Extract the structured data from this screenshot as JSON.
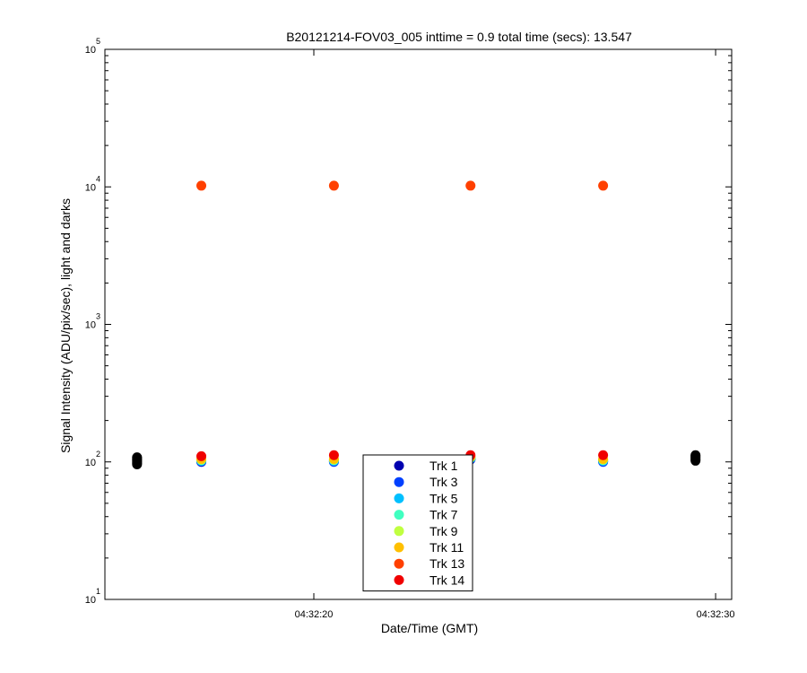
{
  "chart_data": {
    "type": "scatter",
    "title": "B20121214-FOV03_005 inttime = 0.9 total time (secs): 13.547",
    "xlabel": "Date/Time (GMT)",
    "ylabel": "Signal Intensity (ADU/pix/sec), light and darks",
    "x_tick_labels": [
      "04:32:20",
      "04:32:30"
    ],
    "x_unit": "seconds after 04:32:00 GMT",
    "x_ticks": [
      20.0,
      30.0
    ],
    "xlim": [
      14.8,
      30.4
    ],
    "yscale": "log",
    "ylim": [
      10,
      100000
    ],
    "y_ticks": [
      {
        "base": "10",
        "exp": "1",
        "value": 10
      },
      {
        "base": "10",
        "exp": "2",
        "value": 100
      },
      {
        "base": "10",
        "exp": "3",
        "value": 1000
      },
      {
        "base": "10",
        "exp": "4",
        "value": 10000
      },
      {
        "base": "10",
        "exp": "5",
        "value": 100000
      }
    ],
    "legend_position": "bottom-center",
    "series": [
      {
        "name": "Trk 1",
        "color": "#0000b0",
        "points": [
          [
            17.2,
            100
          ],
          [
            20.5,
            101
          ],
          [
            23.9,
            104
          ],
          [
            27.2,
            101
          ]
        ]
      },
      {
        "name": "Trk 3",
        "color": "#0040ff",
        "points": [
          [
            17.2,
            101
          ],
          [
            20.5,
            100
          ],
          [
            23.9,
            105
          ],
          [
            27.2,
            100
          ]
        ]
      },
      {
        "name": "Trk 5",
        "color": "#00c0ff",
        "points": [
          [
            17.2,
            102
          ],
          [
            20.5,
            102
          ],
          [
            23.9,
            106
          ],
          [
            27.2,
            102
          ]
        ]
      },
      {
        "name": "Trk 7",
        "color": "#40ffc0",
        "points": [
          [
            17.2,
            103
          ],
          [
            20.5,
            103
          ],
          [
            23.9,
            107
          ],
          [
            27.2,
            103
          ]
        ]
      },
      {
        "name": "Trk 9",
        "color": "#c0ff40",
        "points": [
          [
            17.2,
            104
          ],
          [
            20.5,
            104
          ],
          [
            23.9,
            108
          ],
          [
            27.2,
            104
          ]
        ]
      },
      {
        "name": "Trk 11",
        "color": "#ffc000",
        "points": [
          [
            17.2,
            105
          ],
          [
            20.5,
            105
          ],
          [
            23.9,
            109
          ],
          [
            27.2,
            105
          ]
        ]
      },
      {
        "name": "Trk 13",
        "color": "#ff4000",
        "points": [
          [
            17.2,
            10200
          ],
          [
            20.5,
            10200
          ],
          [
            23.9,
            10200
          ],
          [
            27.2,
            10200
          ]
        ]
      },
      {
        "name": "Trk 14",
        "color": "#f00000",
        "points": [
          [
            17.2,
            110
          ],
          [
            20.5,
            112
          ],
          [
            23.9,
            112
          ],
          [
            27.2,
            112
          ]
        ]
      }
    ],
    "dark_series": {
      "color": "#000000",
      "points": [
        [
          15.6,
          96
        ],
        [
          15.6,
          98
        ],
        [
          15.6,
          100
        ],
        [
          15.6,
          102
        ],
        [
          15.6,
          104
        ],
        [
          15.6,
          106
        ],
        [
          15.6,
          108
        ],
        [
          29.5,
          102
        ],
        [
          29.5,
          104
        ],
        [
          29.5,
          106
        ],
        [
          29.5,
          108
        ],
        [
          29.5,
          110
        ],
        [
          29.5,
          112
        ]
      ]
    }
  }
}
